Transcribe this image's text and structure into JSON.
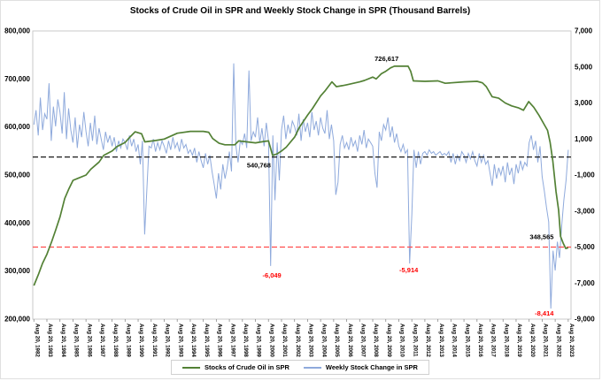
{
  "title": "Stocks of Crude Oil in SPR and Weekly Stock Change in SPR (Thousand Barrels)",
  "chart_data": {
    "type": "line",
    "title": "Stocks of Crude Oil in SPR and Weekly Stock Change in SPR (Thousand Barrels)",
    "grid": false,
    "legend_position": "bottom",
    "x_axis": {
      "start_year": 1982,
      "tick_labels": [
        "Aug 20, 1982",
        "Aug 20, 1983",
        "Aug 20, 1984",
        "Aug 20, 1985",
        "Aug 20, 1986",
        "Aug 20, 1987",
        "Aug 20, 1988",
        "Aug 20, 1989",
        "Aug 20, 1990",
        "Aug 20, 1991",
        "Aug 20, 1992",
        "Aug 20, 1993",
        "Aug 20, 1994",
        "Aug 20, 1995",
        "Aug 20, 1996",
        "Aug 20, 1997",
        "Aug 20, 1998",
        "Aug 20, 1999",
        "Aug 20, 2000",
        "Aug 20, 2001",
        "Aug 20, 2002",
        "Aug 20, 2003",
        "Aug 20, 2004",
        "Aug 20, 2005",
        "Aug 20, 2006",
        "Aug 20, 2007",
        "Aug 20, 2008",
        "Aug 20, 2009",
        "Aug 20, 2010",
        "Aug 20, 2011",
        "Aug 20, 2012",
        "Aug 20, 2013",
        "Aug 20, 2014",
        "Aug 20, 2015",
        "Aug 20, 2016",
        "Aug 20, 2017",
        "Aug 20, 2018",
        "Aug 20, 2019",
        "Aug 20, 2020",
        "Aug 20, 2021",
        "Aug 20, 2022",
        "Aug 20, 2023"
      ]
    },
    "left_axis": {
      "min": 200000,
      "max": 800000,
      "step": 100000,
      "tick_labels": [
        "800,000",
        "700,000",
        "600,000",
        "500,000",
        "400,000",
        "300,000",
        "200,000"
      ]
    },
    "right_axis": {
      "min": -9000,
      "max": 7000,
      "step": 2000,
      "tick_labels": [
        "7,000",
        "5,000",
        "3,000",
        "1,000",
        "-1,000",
        "-3,000",
        "-5,000",
        "-7,000",
        "-9,000"
      ]
    },
    "reference_lines": [
      {
        "axis": "right",
        "value": 0,
        "color": "#1a1a1a",
        "style": "dashed"
      },
      {
        "axis": "right",
        "value": -5000,
        "color": "#ff4d4d",
        "style": "dashed"
      }
    ],
    "annotations": [
      {
        "text": "726,617",
        "year": 2009.7,
        "value": 737000,
        "axis": "left",
        "color": "#000000"
      },
      {
        "text": "540,768",
        "year": 1999.9,
        "value": 516000,
        "axis": "left",
        "color": "#000000"
      },
      {
        "text": "348,565",
        "year": 2021.6,
        "value": 367000,
        "axis": "left",
        "color": "#000000"
      },
      {
        "text": "-6,049",
        "year": 2000.9,
        "value": -6700,
        "axis": "right",
        "color": "#ff0000"
      },
      {
        "text": "-5,914",
        "year": 2011.4,
        "value": -6400,
        "axis": "right",
        "color": "#ff0000"
      },
      {
        "text": "-8,414",
        "year": 2021.8,
        "value": -8800,
        "axis": "right",
        "color": "#ff0000"
      }
    ],
    "series": [
      {
        "name": "Stocks of Crude Oil in SPR",
        "type": "line",
        "axis": "left",
        "color": "#538135",
        "points": [
          [
            1982.64,
            270000
          ],
          [
            1983.0,
            294000
          ],
          [
            1983.3,
            316000
          ],
          [
            1983.64,
            335000
          ],
          [
            1984.0,
            361000
          ],
          [
            1984.3,
            385000
          ],
          [
            1984.64,
            413000
          ],
          [
            1985.0,
            451000
          ],
          [
            1985.3,
            470000
          ],
          [
            1985.64,
            489000
          ],
          [
            1986.0,
            493000
          ],
          [
            1986.64,
            500000
          ],
          [
            1987.0,
            512000
          ],
          [
            1987.64,
            527000
          ],
          [
            1988.0,
            541000
          ],
          [
            1988.64,
            550000
          ],
          [
            1989.0,
            559000
          ],
          [
            1989.64,
            568000
          ],
          [
            1990.0,
            579000
          ],
          [
            1990.4,
            590000
          ],
          [
            1990.9,
            586000
          ],
          [
            1991.15,
            569000
          ],
          [
            1992.0,
            572000
          ],
          [
            1992.64,
            575000
          ],
          [
            1993.64,
            587000
          ],
          [
            1994.64,
            591000
          ],
          [
            1995.64,
            591000
          ],
          [
            1996.05,
            589000
          ],
          [
            1996.35,
            576000
          ],
          [
            1996.85,
            566000
          ],
          [
            1997.3,
            563000
          ],
          [
            1998.05,
            563000
          ],
          [
            1998.35,
            571000
          ],
          [
            1999.64,
            567000
          ],
          [
            2000.3,
            570000
          ],
          [
            2000.64,
            571000
          ],
          [
            2000.95,
            540768
          ],
          [
            2001.3,
            544000
          ],
          [
            2001.64,
            550000
          ],
          [
            2002.0,
            558000
          ],
          [
            2002.64,
            579000
          ],
          [
            2003.0,
            599000
          ],
          [
            2003.64,
            625000
          ],
          [
            2004.0,
            638000
          ],
          [
            2004.64,
            665000
          ],
          [
            2005.0,
            676000
          ],
          [
            2005.5,
            694000
          ],
          [
            2005.85,
            684000
          ],
          [
            2006.3,
            686000
          ],
          [
            2006.64,
            688000
          ],
          [
            2007.64,
            694000
          ],
          [
            2008.0,
            697000
          ],
          [
            2008.64,
            704000
          ],
          [
            2008.9,
            700000
          ],
          [
            2009.3,
            711000
          ],
          [
            2009.64,
            716000
          ],
          [
            2010.0,
            723000
          ],
          [
            2010.3,
            726617
          ],
          [
            2011.35,
            726500
          ],
          [
            2011.55,
            716000
          ],
          [
            2011.75,
            696000
          ],
          [
            2012.64,
            695000
          ],
          [
            2013.64,
            696000
          ],
          [
            2014.2,
            691000
          ],
          [
            2015.64,
            694000
          ],
          [
            2016.64,
            695000
          ],
          [
            2017.05,
            692000
          ],
          [
            2017.35,
            684000
          ],
          [
            2017.8,
            663000
          ],
          [
            2018.3,
            660000
          ],
          [
            2018.8,
            650000
          ],
          [
            2019.3,
            644000
          ],
          [
            2019.8,
            640000
          ],
          [
            2020.2,
            635000
          ],
          [
            2020.6,
            653000
          ],
          [
            2021.0,
            641000
          ],
          [
            2021.4,
            624000
          ],
          [
            2021.8,
            605000
          ],
          [
            2022.05,
            593000
          ],
          [
            2022.25,
            568000
          ],
          [
            2022.45,
            530000
          ],
          [
            2022.7,
            465000
          ],
          [
            2022.9,
            427000
          ],
          [
            2023.05,
            372000
          ],
          [
            2023.25,
            358000
          ],
          [
            2023.45,
            347000
          ],
          [
            2023.64,
            348565
          ]
        ]
      },
      {
        "name": "Weekly Stock Change in SPR",
        "type": "line",
        "axis": "right",
        "color": "#8faadc",
        "start_year": 1982.636,
        "step_years": 0.166667,
        "values": [
          1800,
          2600,
          1200,
          3300,
          1500,
          2400,
          2100,
          4100,
          900,
          2800,
          1700,
          3200,
          2500,
          1300,
          3600,
          1000,
          2700,
          1500,
          800,
          2200,
          500,
          1800,
          1100,
          2500,
          1400,
          600,
          1900,
          900,
          2300,
          700,
          1600,
          1000,
          400,
          1400,
          800,
          1200,
          600,
          1100,
          300,
          900,
          500,
          1000,
          800,
          400,
          1200,
          600,
          1000,
          300,
          700,
          -400,
          900,
          -4300,
          -1800,
          600,
          500,
          1000,
          300,
          800,
          400,
          900,
          600,
          200,
          900,
          400,
          1100,
          500,
          800,
          300,
          1000,
          500,
          700,
          200,
          400,
          100,
          500,
          -300,
          300,
          -200,
          -600,
          200,
          -400,
          100,
          -800,
          -1500,
          -2300,
          -900,
          -1800,
          -400,
          -1200,
          -600,
          300,
          -800,
          5200,
          600,
          -300,
          900,
          700,
          1300,
          500,
          4800,
          900,
          1400,
          1100,
          2200,
          800,
          1600,
          600,
          1900,
          900,
          -6049,
          1200,
          -2400,
          800,
          -1300,
          1500,
          2300,
          1000,
          1800,
          1300,
          2000,
          1700,
          1200,
          2400,
          900,
          2100,
          1400,
          1900,
          1100,
          2500,
          1500,
          2000,
          1200,
          2200,
          1600,
          1300,
          2600,
          1000,
          1800,
          900,
          -2100,
          -1400,
          700,
          1200,
          500,
          800,
          400,
          1100,
          600,
          900,
          300,
          1200,
          700,
          1500,
          500,
          1000,
          800,
          600,
          -900,
          -1700,
          1400,
          900,
          1800,
          1500,
          2200,
          1100,
          1700,
          800,
          1300,
          600,
          300,
          700,
          200,
          400,
          -5914,
          -3200,
          400,
          -600,
          300,
          -400,
          200,
          300,
          100,
          400,
          200,
          300,
          100,
          200,
          300,
          100,
          200,
          100,
          300,
          -300,
          200,
          -400,
          100,
          -200,
          300,
          100,
          -300,
          200,
          -100,
          300,
          -200,
          -500,
          200,
          -300,
          100,
          -400,
          -200,
          -900,
          -1600,
          -400,
          -1200,
          -600,
          -1000,
          -500,
          -1400,
          -300,
          -1000,
          -600,
          -1500,
          -400,
          -900,
          -200,
          -700,
          -300,
          -500,
          800,
          1200,
          400,
          900,
          -300,
          600,
          -1100,
          -1900,
          -2800,
          -3600,
          -8414,
          -5200,
          -6300,
          -4700,
          -5600,
          -3800,
          -2400,
          -1300,
          400
        ]
      }
    ]
  }
}
